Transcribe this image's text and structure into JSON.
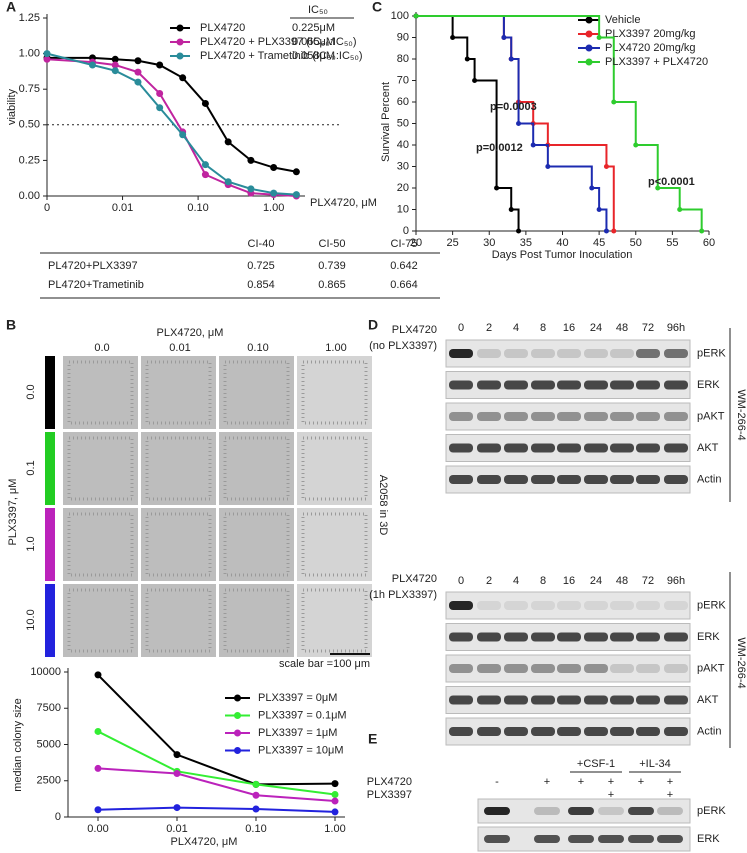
{
  "panel_labels": [
    "A",
    "B",
    "C",
    "D",
    "E"
  ],
  "chart_data": [
    {
      "type": "line",
      "xlog": true,
      "xlabel": "PLX4720, μM",
      "ylabel": "viability",
      "x": [
        0.001,
        0.004,
        0.008,
        0.016,
        0.031,
        0.0625,
        0.125,
        0.25,
        0.5,
        1,
        2
      ],
      "xlim": [
        0.001,
        2.6
      ],
      "xticks": [
        {
          "value": 0.001,
          "label": "0"
        },
        0.01,
        {
          "value": 0.1,
          "label": "0.10"
        },
        {
          "value": 1,
          "label": "1.00"
        }
      ],
      "ylim": [
        0,
        1.25
      ],
      "yticks": [
        {
          "value": 0,
          "label": "0.00"
        },
        0.25,
        {
          "value": 0.5,
          "label": "0.50"
        },
        0.75,
        {
          "value": 1,
          "label": "1.00"
        },
        1.25
      ],
      "reference_line": 0.5,
      "ic50_header": "IC₅₀",
      "series": [
        {
          "name": "PLX4720",
          "color": "#000000",
          "ic50": "0.225μM",
          "values": [
            0.97,
            0.97,
            0.96,
            0.95,
            0.92,
            0.83,
            0.65,
            0.38,
            0.25,
            0.2,
            0.17
          ]
        },
        {
          "name": "PLX4720 + PLX3397 (IC₅₀:IC₅₀)",
          "color": "#c0249f",
          "ic50": "0.065μM",
          "values": [
            0.96,
            0.94,
            0.92,
            0.87,
            0.72,
            0.45,
            0.15,
            0.08,
            0.02,
            0.01,
            0.0
          ]
        },
        {
          "name": "PLX4720 + Trametinib (IC₅₀:IC₅₀)",
          "color": "#2a8c9a",
          "ic50": "0.058μM",
          "values": [
            1.0,
            0.92,
            0.88,
            0.8,
            0.62,
            0.43,
            0.22,
            0.1,
            0.05,
            0.02,
            0.01
          ]
        }
      ]
    },
    {
      "type": "line",
      "xlabel": "PLX4720, μM",
      "ylabel": "median colony  size",
      "categories": [
        "0.00",
        "0.01",
        "0.10",
        "1.00"
      ],
      "ylim": [
        0,
        10000
      ],
      "yticks": [
        0,
        2500,
        5000,
        7500,
        10000
      ],
      "series": [
        {
          "name": "PLX3397 = 0μM",
          "color": "#000000",
          "values": [
            9800,
            4300,
            2250,
            2300
          ]
        },
        {
          "name": "PLX3397 = 0.1μM",
          "color": "#33ee33",
          "values": [
            5900,
            3150,
            2250,
            1550
          ]
        },
        {
          "name": "PLX3397 = 1μM",
          "color": "#bb22bb",
          "values": [
            3350,
            3000,
            1500,
            1100
          ]
        },
        {
          "name": "PLX3397 = 10μM",
          "color": "#2222dd",
          "values": [
            500,
            650,
            550,
            350
          ]
        }
      ]
    },
    {
      "type": "step",
      "xlabel": "Days Post Tumor Inoculation",
      "ylabel": "Survival Percent",
      "xlim": [
        20,
        60
      ],
      "xticks": [
        20,
        25,
        30,
        35,
        40,
        45,
        50,
        55,
        60
      ],
      "ylim": [
        0,
        100
      ],
      "yticks": [
        0,
        10,
        20,
        30,
        40,
        50,
        60,
        70,
        80,
        90,
        100
      ],
      "series": [
        {
          "name": "Vehicle",
          "color": "#000000",
          "x": [
            20,
            25,
            27,
            28,
            31,
            33,
            34
          ],
          "values": [
            100,
            90,
            80,
            70,
            20,
            10,
            0
          ]
        },
        {
          "name": "PLX3397 20mg/kg",
          "color": "#e8252a",
          "x": [
            20,
            32,
            33,
            34,
            36,
            38,
            46,
            47
          ],
          "values": [
            100,
            90,
            80,
            60,
            50,
            40,
            30,
            0
          ]
        },
        {
          "name": "PLX4720 20mg/kg",
          "color": "#1c2bb0",
          "x": [
            20,
            32,
            33,
            34,
            36,
            38,
            44,
            45,
            46
          ],
          "values": [
            100,
            90,
            80,
            50,
            40,
            30,
            20,
            10,
            0
          ]
        },
        {
          "name": "PLX3397 + PLX4720",
          "color": "#2ecc2e",
          "x": [
            20,
            45,
            47,
            50,
            53,
            56,
            59
          ],
          "values": [
            100,
            90,
            60,
            40,
            20,
            10,
            0
          ]
        }
      ],
      "annotations": [
        {
          "text": "p=0.0003",
          "color": "#e8252a"
        },
        {
          "text": "p=0.0012",
          "color": "#1c2bb0"
        },
        {
          "text": "p<0.0001",
          "color": "#2ecc2e"
        }
      ]
    }
  ],
  "table": {
    "header": [
      "CI-40",
      "CI-50",
      "CI-75"
    ],
    "rows": [
      {
        "label": "PL4720+PLX3397",
        "color": "#c0249f",
        "values": [
          0.725,
          0.739,
          0.642
        ]
      },
      {
        "label": "PL4720+Trametinib",
        "color": "#2a8c9a",
        "values": [
          0.854,
          0.865,
          0.664
        ]
      }
    ]
  },
  "images_b": {
    "title": "PLX4720, μM",
    "columns": [
      "0.0",
      "0.01",
      "0.10",
      "1.00"
    ],
    "rows": [
      "0.0",
      "0.1",
      "1.0",
      "10.0"
    ],
    "row_colors": [
      "#000000",
      "#22cc22",
      "#bb22bb",
      "#2222dd"
    ],
    "row_axis": "PLX3397, μM",
    "side_label": "A2058 in 3D",
    "scale_bar": "scale bar =100 μm"
  },
  "blot_d": {
    "times": [
      "0",
      "2",
      "4",
      "8",
      "16",
      "24",
      "48",
      "72",
      "96h"
    ],
    "blocks": [
      {
        "treatment": "PLX4720",
        "condition": "(no PLX3397)",
        "cell_line": "WM-266-4",
        "rows": [
          "pERK",
          "ERK",
          "pAKT",
          "AKT",
          "Actin"
        ]
      },
      {
        "treatment": "PLX4720",
        "condition": "(1h PLX3397)",
        "cell_line": "WM-266-4",
        "rows": [
          "pERK",
          "ERK",
          "pAKT",
          "AKT",
          "Actin"
        ]
      }
    ]
  },
  "blot_e": {
    "groups": [
      "+CSF-1",
      "+IL-34"
    ],
    "treatments": [
      {
        "name": "PLX4720",
        "signs": [
          "-",
          "+",
          "+",
          "+",
          "+",
          "+"
        ]
      },
      {
        "name": "PLX3397",
        "signs": [
          null,
          null,
          null,
          "+",
          null,
          "+"
        ]
      }
    ],
    "rows": [
      "pERK",
      "ERK"
    ]
  }
}
